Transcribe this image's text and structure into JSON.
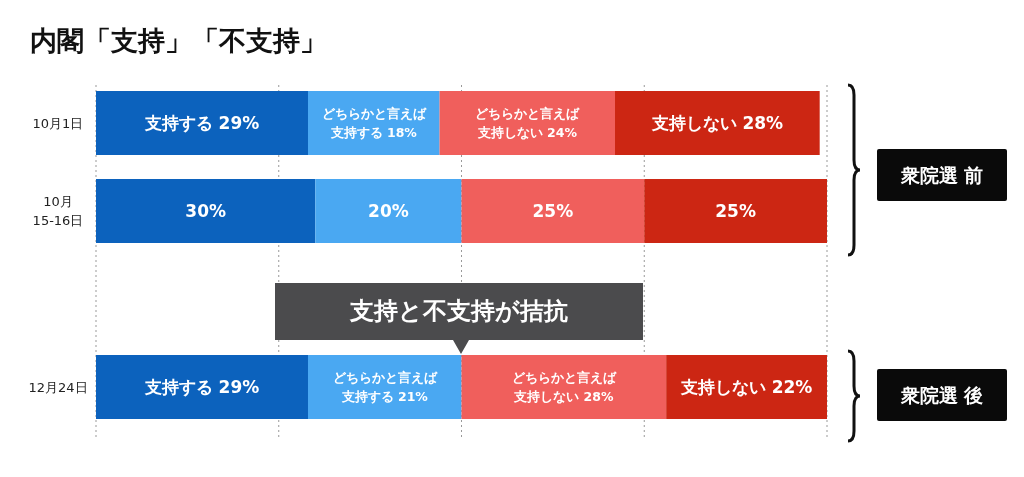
{
  "chart_data": {
    "type": "bar",
    "orientation": "horizontal",
    "stacked": true,
    "title": "内閣「支持」「不支持」",
    "categories": [
      "10月1日",
      "10月\n15-16日",
      null,
      "12月24日"
    ],
    "series": [
      {
        "color": "#0c62bd",
        "values": [
          29,
          30,
          null,
          29
        ],
        "value_labels": [
          "支持する 29%",
          "30%",
          null,
          "支持する 29%"
        ]
      },
      {
        "color": "#4aa8f2",
        "values": [
          18,
          20,
          null,
          21
        ],
        "value_labels": [
          "どちらかと言えば支持する 18%",
          "20%",
          null,
          "どちらかと言えば支持する 21%"
        ]
      },
      {
        "color": "#f05f5c",
        "values": [
          24,
          25,
          null,
          28
        ],
        "value_labels": [
          "どちらかと言えば支持しない 24%",
          "25%",
          null,
          "どちらかと言えば支持しない 28%"
        ]
      },
      {
        "color": "#cc2613",
        "values": [
          28,
          25,
          null,
          22
        ],
        "value_labels": [
          "支持しない 28%",
          "25%",
          null,
          "支持しない 22%"
        ]
      }
    ],
    "xlim": [
      0,
      100
    ],
    "xticks": [
      {
        "value": 0,
        "label": null
      },
      {
        "value": 25,
        "label": null
      },
      {
        "value": 50,
        "label": null
      },
      {
        "value": 75,
        "label": null
      },
      {
        "value": 100,
        "label": null
      }
    ],
    "grid": "x",
    "tick_labels": "y",
    "annotations": [
      "支持と不支持が拮抗",
      "衆院選 前",
      "衆院選 後"
    ]
  }
}
